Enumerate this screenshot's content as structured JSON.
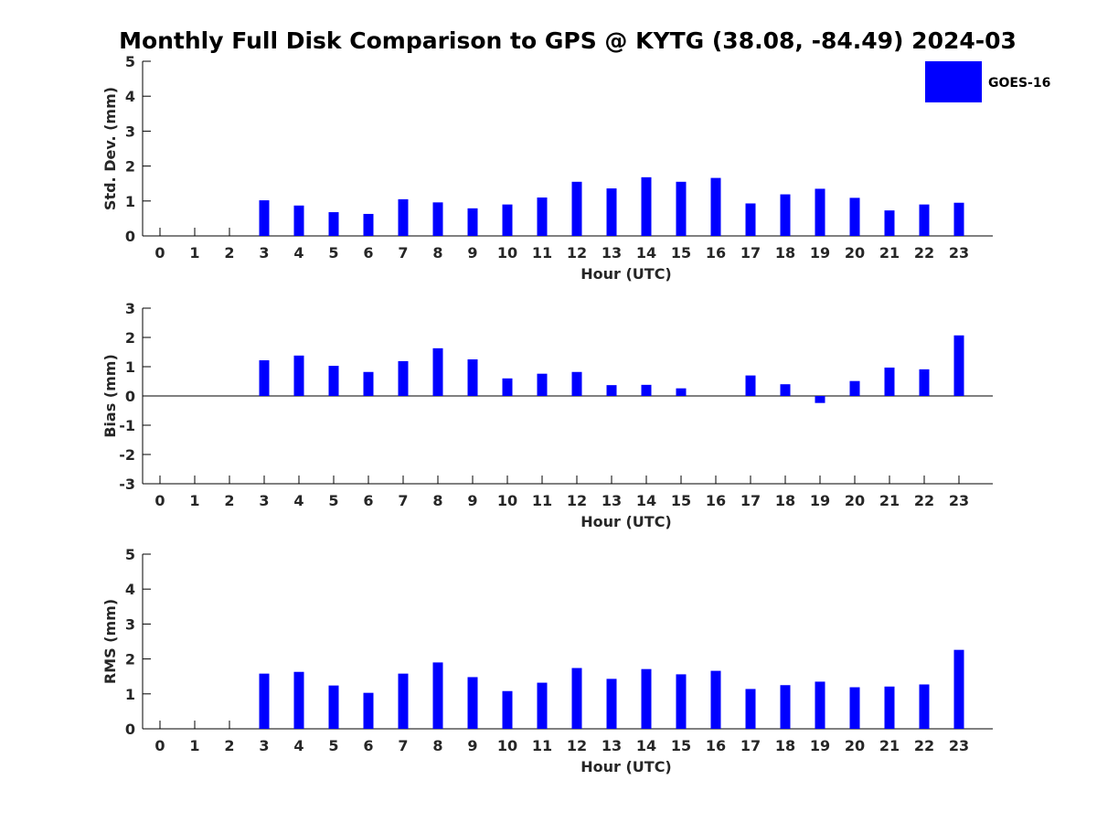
{
  "title": "Monthly Full Disk Comparison to GPS @ KYTG (38.08, -84.49) 2024-03",
  "legend": {
    "label": "GOES-16",
    "color": "#0000ff"
  },
  "chart_data": [
    {
      "type": "bar",
      "ylabel": "Std. Dev. (mm)",
      "xlabel": "Hour (UTC)",
      "ylim": [
        0,
        5
      ],
      "yticks": [
        0,
        1,
        2,
        3,
        4,
        5
      ],
      "categories": [
        "0",
        "1",
        "2",
        "3",
        "4",
        "5",
        "6",
        "7",
        "8",
        "9",
        "10",
        "11",
        "12",
        "13",
        "14",
        "15",
        "16",
        "17",
        "18",
        "19",
        "20",
        "21",
        "22",
        "23"
      ],
      "series": [
        {
          "name": "GOES-16",
          "color": "#0000ff",
          "values": [
            null,
            null,
            null,
            1.02,
            0.87,
            0.68,
            0.63,
            1.05,
            0.96,
            0.79,
            0.9,
            1.1,
            1.55,
            1.36,
            1.68,
            1.55,
            1.66,
            0.93,
            1.19,
            1.35,
            1.09,
            0.73,
            0.9,
            0.95
          ]
        }
      ],
      "legend_position": "top-right"
    },
    {
      "type": "bar",
      "ylabel": "Bias (mm)",
      "xlabel": "Hour (UTC)",
      "ylim": [
        -3,
        3
      ],
      "yticks": [
        -3,
        -2,
        -1,
        0,
        1,
        2,
        3
      ],
      "categories": [
        "0",
        "1",
        "2",
        "3",
        "4",
        "5",
        "6",
        "7",
        "8",
        "9",
        "10",
        "11",
        "12",
        "13",
        "14",
        "15",
        "16",
        "17",
        "18",
        "19",
        "20",
        "21",
        "22",
        "23"
      ],
      "series": [
        {
          "name": "GOES-16",
          "color": "#0000ff",
          "values": [
            null,
            null,
            null,
            1.22,
            1.38,
            1.03,
            0.82,
            1.19,
            1.63,
            1.25,
            0.6,
            0.76,
            0.82,
            0.37,
            0.38,
            0.26,
            null,
            0.7,
            0.4,
            -0.24,
            0.51,
            0.97,
            0.91,
            2.07
          ]
        }
      ]
    },
    {
      "type": "bar",
      "ylabel": "RMS (mm)",
      "xlabel": "Hour (UTC)",
      "ylim": [
        0,
        5
      ],
      "yticks": [
        0,
        1,
        2,
        3,
        4,
        5
      ],
      "categories": [
        "0",
        "1",
        "2",
        "3",
        "4",
        "5",
        "6",
        "7",
        "8",
        "9",
        "10",
        "11",
        "12",
        "13",
        "14",
        "15",
        "16",
        "17",
        "18",
        "19",
        "20",
        "21",
        "22",
        "23"
      ],
      "series": [
        {
          "name": "GOES-16",
          "color": "#0000ff",
          "values": [
            null,
            null,
            null,
            1.58,
            1.63,
            1.24,
            1.03,
            1.58,
            1.9,
            1.48,
            1.08,
            1.32,
            1.74,
            1.43,
            1.71,
            1.56,
            1.66,
            1.14,
            1.25,
            1.35,
            1.19,
            1.21,
            1.27,
            2.26
          ]
        }
      ]
    }
  ]
}
